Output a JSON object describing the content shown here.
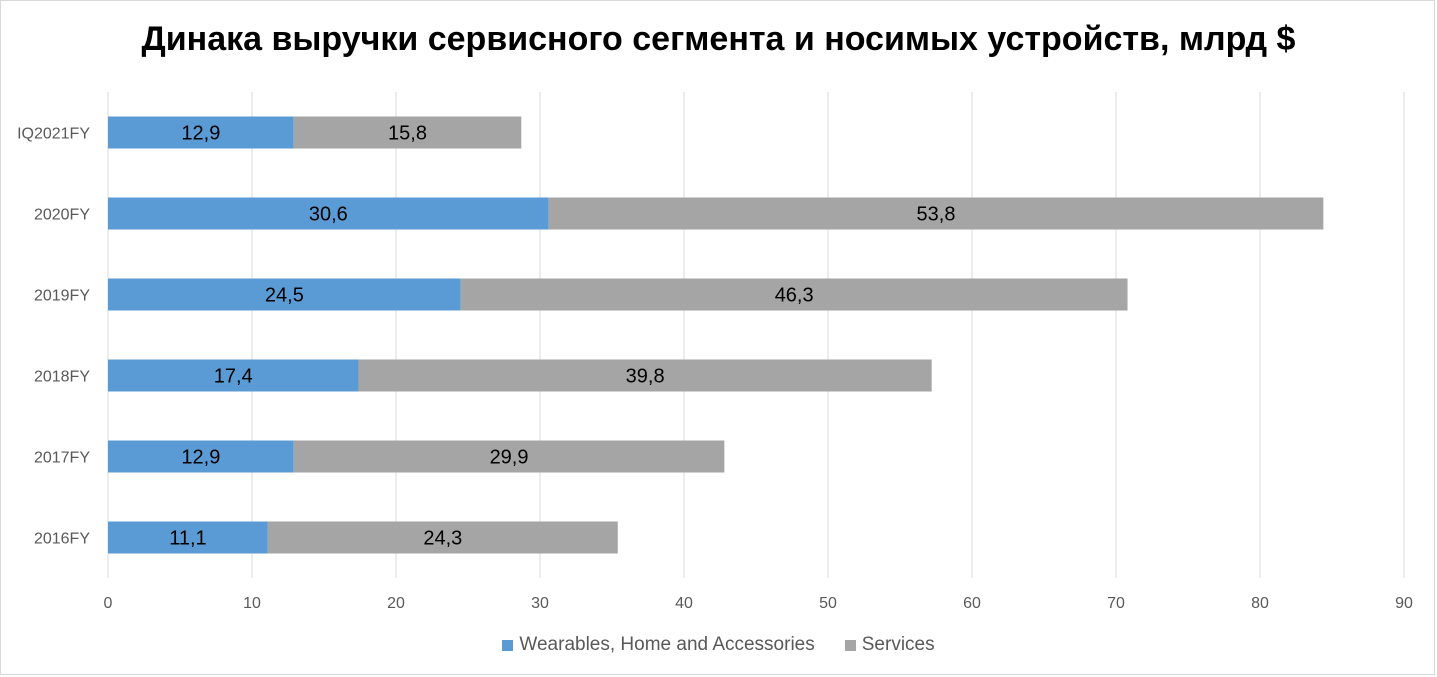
{
  "chart_data": {
    "type": "bar",
    "orientation": "horizontal",
    "stacked": true,
    "title": "Динака выручки сервисного сегмента и носимых устройств, млрд $",
    "categories": [
      "2016FY",
      "2017FY",
      "2018FY",
      "2019FY",
      "2020FY",
      "IQ2021FY"
    ],
    "series": [
      {
        "name": "Wearables, Home and Accessories",
        "color": "#5b9bd5",
        "values": [
          11.1,
          12.9,
          17.4,
          24.5,
          30.6,
          12.9
        ],
        "labels": [
          "11,1",
          "12,9",
          "17,4",
          "24,5",
          "30,6",
          "12,9"
        ]
      },
      {
        "name": "Services",
        "color": "#a5a5a5",
        "values": [
          24.3,
          29.9,
          39.8,
          46.3,
          53.8,
          15.8
        ],
        "labels": [
          "24,3",
          "29,9",
          "39,8",
          "46,3",
          "53,8",
          "15,8"
        ]
      }
    ],
    "xlim": [
      0,
      90
    ],
    "xticks": [
      0,
      10,
      20,
      30,
      40,
      50,
      60,
      70,
      80,
      90
    ],
    "xtick_labels": [
      "0",
      "10",
      "20",
      "30",
      "40",
      "50",
      "60",
      "70",
      "80",
      "90"
    ],
    "grid": true,
    "legend_position": "bottom",
    "xlabel": "",
    "ylabel": ""
  }
}
